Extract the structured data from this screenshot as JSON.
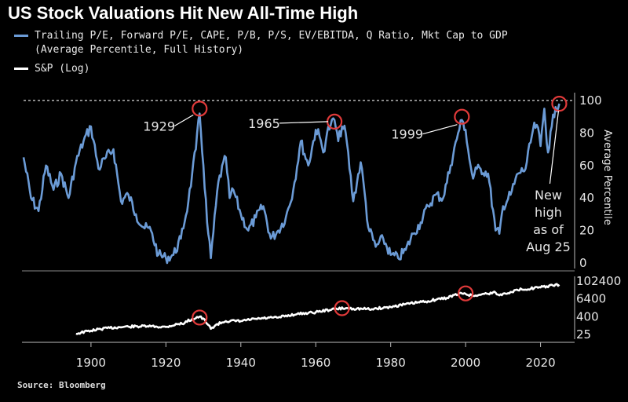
{
  "title": "US Stock Valuations Hit New All-Time High",
  "legend": {
    "series1_line1": "Trailing P/E, Forward P/E, CAPE, P/B, P/S, EV/EBITDA, Q Ratio, Mkt Cap to GDP",
    "series1_line2": "(Average Percentile, Full History)",
    "series2": "S&P (Log)"
  },
  "source": "Source: Bloomberg",
  "colors": {
    "background": "#000000",
    "valuation": "#6b9bd6",
    "sp": "#ffffff",
    "highlight": "#e03a3a"
  },
  "chart_data": [
    {
      "type": "line",
      "name": "valuation-percentile",
      "ylabel": "Average Percentile",
      "ylim": [
        0,
        100
      ],
      "yticks": [
        0,
        20,
        40,
        60,
        80,
        100
      ],
      "xlim": [
        1882,
        2027
      ],
      "reference_line": 100,
      "x": [
        1882,
        1884,
        1886,
        1888,
        1890,
        1892,
        1894,
        1896,
        1898,
        1900,
        1902,
        1904,
        1906,
        1908,
        1910,
        1912,
        1914,
        1916,
        1918,
        1920,
        1922,
        1924,
        1926,
        1927,
        1928,
        1929,
        1930,
        1931,
        1932,
        1934,
        1936,
        1937,
        1938,
        1940,
        1942,
        1944,
        1946,
        1948,
        1950,
        1952,
        1954,
        1956,
        1958,
        1960,
        1961,
        1962,
        1963,
        1964,
        1965,
        1966,
        1967,
        1968,
        1970,
        1972,
        1973,
        1974,
        1976,
        1978,
        1980,
        1982,
        1984,
        1986,
        1988,
        1990,
        1992,
        1994,
        1996,
        1998,
        1999,
        2000,
        2001,
        2002,
        2003,
        2004,
        2006,
        2008,
        2009,
        2010,
        2012,
        2014,
        2016,
        2018,
        2019,
        2020,
        2021,
        2022,
        2023,
        2024,
        2025
      ],
      "values": [
        65,
        40,
        32,
        60,
        45,
        55,
        40,
        62,
        75,
        84,
        58,
        65,
        70,
        38,
        42,
        30,
        22,
        20,
        5,
        3,
        5,
        15,
        38,
        55,
        70,
        92,
        60,
        25,
        3,
        50,
        65,
        40,
        45,
        30,
        20,
        28,
        35,
        15,
        20,
        28,
        45,
        75,
        60,
        82,
        78,
        68,
        80,
        85,
        88,
        75,
        84,
        80,
        38,
        62,
        44,
        22,
        10,
        15,
        5,
        3,
        8,
        18,
        25,
        35,
        42,
        40,
        60,
        80,
        88,
        82,
        64,
        52,
        58,
        58,
        55,
        20,
        18,
        35,
        42,
        55,
        58,
        82,
        85,
        72,
        95,
        68,
        84,
        96,
        98
      ],
      "highlights": [
        {
          "x": 1929,
          "y": 95,
          "label": "1929"
        },
        {
          "x": 1965,
          "y": 87,
          "label": "1965"
        },
        {
          "x": 1999,
          "y": 90,
          "label": "1999"
        },
        {
          "x": 2025,
          "y": 98,
          "label": ""
        }
      ],
      "annotation": [
        "New",
        "high",
        "as of",
        "Aug 25"
      ]
    },
    {
      "type": "line",
      "name": "sp-log",
      "yscale": "log",
      "ylabel": "",
      "yticks": [
        25,
        400,
        6400,
        102400
      ],
      "ytick_labels": [
        "25",
        "400",
        "6400",
        "102400"
      ],
      "x": [
        1896,
        1900,
        1905,
        1910,
        1915,
        1920,
        1925,
        1929,
        1931,
        1932,
        1936,
        1940,
        1945,
        1950,
        1955,
        1960,
        1965,
        1968,
        1970,
        1975,
        1980,
        1985,
        1990,
        1995,
        1999,
        2000,
        2002,
        2005,
        2008,
        2009,
        2012,
        2015,
        2020,
        2025
      ],
      "values": [
        28,
        45,
        70,
        85,
        90,
        80,
        150,
        400,
        130,
        60,
        200,
        200,
        300,
        350,
        600,
        800,
        1300,
        1500,
        1400,
        1300,
        1800,
        3000,
        4500,
        7500,
        15000,
        14000,
        10000,
        14000,
        17000,
        11000,
        19000,
        28000,
        38000,
        58000
      ],
      "highlights": [
        {
          "x": 1929,
          "y": 350
        },
        {
          "x": 1967,
          "y": 1500
        },
        {
          "x": 2000,
          "y": 15000
        }
      ]
    }
  ],
  "xaxis": {
    "ticks": [
      "1900",
      "1920",
      "1940",
      "1960",
      "1980",
      "2000",
      "2020"
    ]
  }
}
